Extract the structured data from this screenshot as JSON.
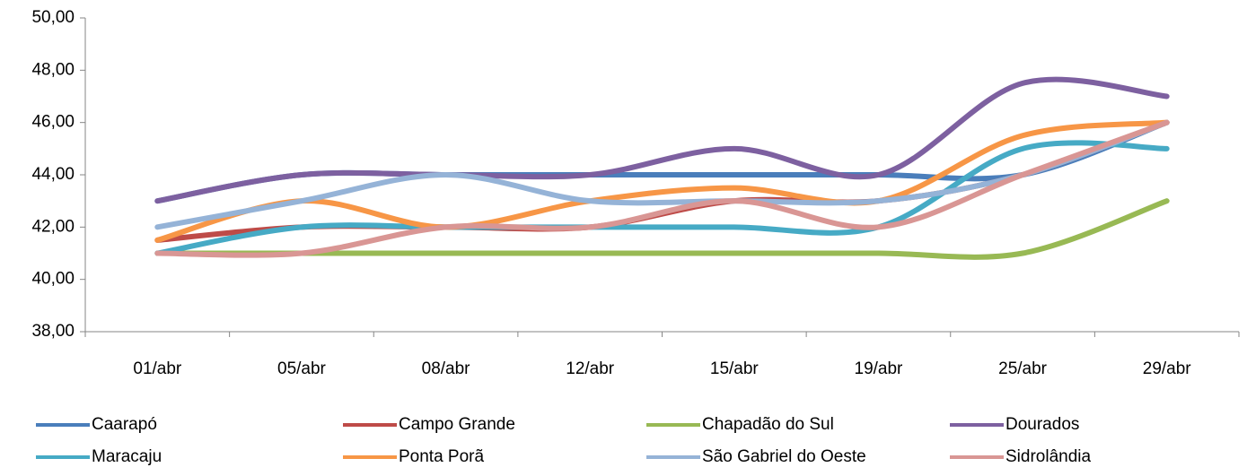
{
  "chart_data": {
    "type": "line",
    "categories": [
      "01/abr",
      "05/abr",
      "08/abr",
      "12/abr",
      "15/abr",
      "19/abr",
      "25/abr",
      "29/abr"
    ],
    "series": [
      {
        "name": "Caarapó",
        "color": "#4a7ebb",
        "values": [
          43,
          44,
          44,
          44,
          44,
          44,
          44,
          46
        ]
      },
      {
        "name": "Campo Grande",
        "color": "#be4b48",
        "values": [
          41.5,
          42,
          42,
          42,
          43,
          43,
          44,
          46
        ]
      },
      {
        "name": "Chapadão do Sul",
        "color": "#98b954",
        "values": [
          41,
          41,
          41,
          41,
          41,
          41,
          41,
          43
        ]
      },
      {
        "name": "Dourados",
        "color": "#7d60a0",
        "values": [
          43,
          44,
          44,
          44,
          45,
          44,
          47.5,
          47
        ]
      },
      {
        "name": "Maracaju",
        "color": "#46aac5",
        "values": [
          41,
          42,
          42,
          42,
          42,
          42,
          45,
          45
        ]
      },
      {
        "name": "Ponta Porã",
        "color": "#f79646",
        "values": [
          41.5,
          43,
          42,
          43,
          43.5,
          43,
          45.5,
          46
        ]
      },
      {
        "name": "São Gabriel do Oeste",
        "color": "#95b3d7",
        "values": [
          42,
          43,
          44,
          43,
          43,
          43,
          44,
          46
        ]
      },
      {
        "name": "Sidrolândia",
        "color": "#d99694",
        "values": [
          41,
          41,
          42,
          42,
          43,
          42,
          44,
          46
        ]
      }
    ],
    "ylim": [
      38,
      50
    ],
    "yticks": [
      {
        "value": 38,
        "label": "38,00"
      },
      {
        "value": 40,
        "label": "40,00"
      },
      {
        "value": 42,
        "label": "42,00"
      },
      {
        "value": 44,
        "label": "44,00"
      },
      {
        "value": 46,
        "label": "46,00"
      },
      {
        "value": 48,
        "label": "48,00"
      },
      {
        "value": 50,
        "label": "50,00"
      }
    ],
    "grid": false
  }
}
